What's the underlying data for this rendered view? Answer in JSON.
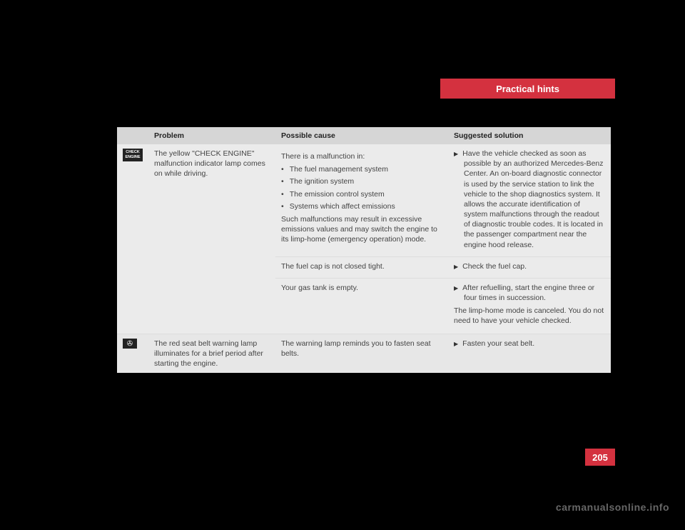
{
  "header": {
    "title": "Practical hints"
  },
  "page_number": "205",
  "watermark": "carmanualsonline.info",
  "table": {
    "columns": [
      "Problem",
      "Possible cause",
      "Suggested solution"
    ],
    "rows": [
      {
        "icon": {
          "type": "check-engine",
          "line1": "CHECK",
          "line2": "ENGINE"
        },
        "problem": "The yellow \"CHECK ENGINE\" malfunction indicator lamp comes on while driving.",
        "cause_intro": "There is a malfunction in:",
        "cause_bullets": [
          "The fuel management system",
          "The ignition system",
          "The emission control system",
          "Systems which affect emissions"
        ],
        "cause_para": "Such malfunctions may result in excessive emissions values and may switch the engine to its limp-home (emergency operation) mode.",
        "solution": "Have the vehicle checked as soon as possible by an authorized Mercedes-Benz Center.\nAn on-board diagnostic connector is used by the service station to link the vehicle to the shop diagnostics system. It allows the accurate identification of system malfunctions through the readout of diagnostic trouble codes. It is located in the passenger compartment near the engine hood release."
      },
      {
        "cause": "The fuel cap is not closed tight.",
        "solution": "Check the fuel cap."
      },
      {
        "cause": "Your gas tank is empty.",
        "solution": "After refuelling, start the engine three or four times in succession.",
        "after": "The limp-home mode is canceled. You do not need to have your vehicle checked."
      },
      {
        "icon": {
          "type": "seatbelt",
          "glyph": "✇"
        },
        "problem": "The red seat belt warning lamp illuminates for a brief period after starting the engine.",
        "cause": "The warning lamp reminds you to fasten seat belts.",
        "solution": "Fasten your seat belt."
      }
    ]
  }
}
